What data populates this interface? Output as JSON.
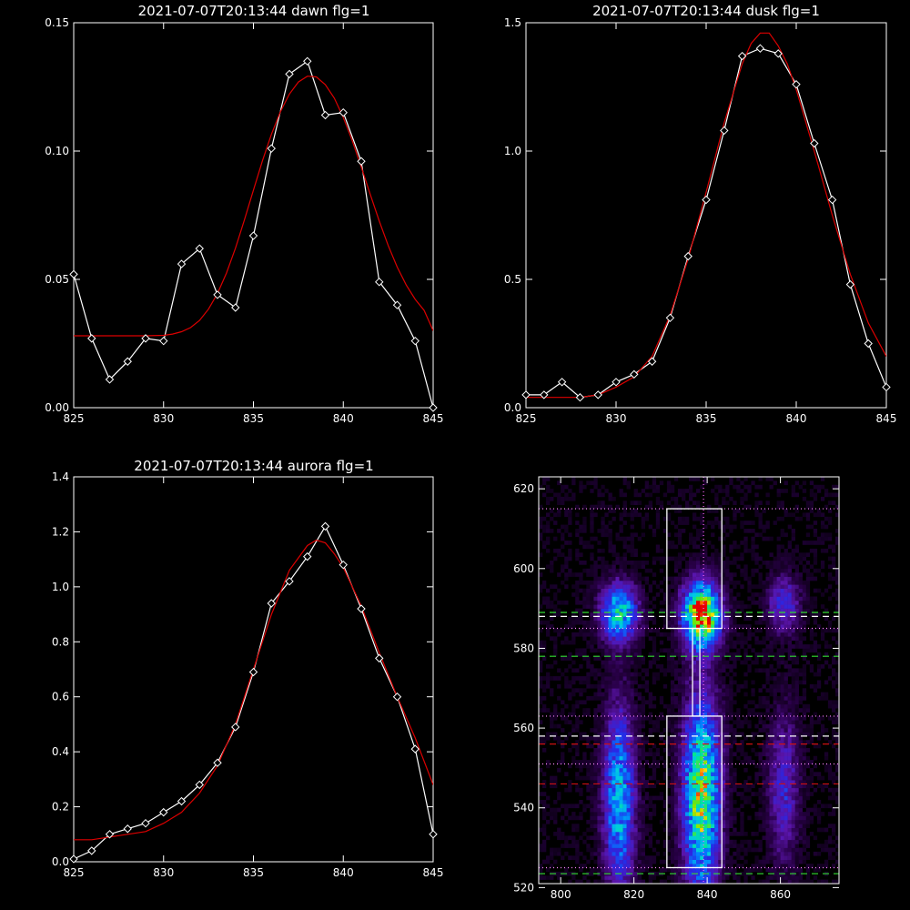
{
  "chart_data": [
    {
      "type": "line",
      "title": "2021-07-07T20:13:44 dawn flg=1",
      "xlim": [
        825,
        845
      ],
      "ylim": [
        0.0,
        0.15
      ],
      "xticks": [
        "825",
        "830",
        "835",
        "840",
        "845"
      ],
      "xtick_values": [
        825,
        830,
        835,
        840,
        845
      ],
      "yticks": [
        "0.00",
        "0.05",
        "0.10",
        "0.15"
      ],
      "ytick_values": [
        0.0,
        0.05,
        0.1,
        0.15
      ],
      "series": [
        {
          "color": "#ffffff",
          "marker": "diamond",
          "x": [
            825,
            826,
            827,
            828,
            829,
            830,
            831,
            832,
            833,
            834,
            835,
            836,
            837,
            838,
            839,
            840,
            841,
            842,
            843,
            844,
            845
          ],
          "y": [
            0.052,
            0.027,
            0.011,
            0.018,
            0.027,
            0.026,
            0.056,
            0.062,
            0.044,
            0.039,
            0.067,
            0.101,
            0.13,
            0.135,
            0.114,
            0.115,
            0.096,
            0.049,
            0.04,
            0.026,
            0.0
          ]
        },
        {
          "color": "#dd0000",
          "x": [
            825,
            826,
            827,
            828,
            829,
            830,
            830.5,
            831,
            831.5,
            832,
            832.5,
            833,
            833.5,
            834,
            834.5,
            835,
            835.5,
            836,
            836.5,
            837,
            837.5,
            838,
            838.5,
            839,
            839.5,
            840,
            840.5,
            841,
            841.5,
            842,
            842.5,
            843,
            843.5,
            844,
            844.5,
            845
          ],
          "y": [
            0.028,
            0.028,
            0.028,
            0.028,
            0.028,
            0.0282,
            0.0287,
            0.0296,
            0.0312,
            0.034,
            0.0384,
            0.0445,
            0.0525,
            0.0622,
            0.0732,
            0.0848,
            0.0962,
            0.1066,
            0.1153,
            0.1222,
            0.1269,
            0.1292,
            0.1289,
            0.1259,
            0.1206,
            0.1131,
            0.104,
            0.0938,
            0.0831,
            0.0727,
            0.0632,
            0.0548,
            0.0478,
            0.0422,
            0.0379,
            0.03
          ]
        }
      ]
    },
    {
      "type": "line",
      "title": "2021-07-07T20:13:44 dusk flg=1",
      "xlim": [
        825,
        845
      ],
      "ylim": [
        0.0,
        1.5
      ],
      "xticks": [
        "825",
        "830",
        "835",
        "840",
        "845"
      ],
      "xtick_values": [
        825,
        830,
        835,
        840,
        845
      ],
      "yticks": [
        "0.0",
        "0.5",
        "1.0",
        "1.5"
      ],
      "ytick_values": [
        0.0,
        0.5,
        1.0,
        1.5
      ],
      "series": [
        {
          "color": "#ffffff",
          "marker": "diamond",
          "x": [
            825,
            826,
            827,
            828,
            829,
            830,
            831,
            832,
            833,
            834,
            835,
            836,
            837,
            838,
            839,
            840,
            841,
            842,
            843,
            844,
            845
          ],
          "y": [
            0.05,
            0.05,
            0.1,
            0.04,
            0.05,
            0.1,
            0.13,
            0.18,
            0.35,
            0.59,
            0.81,
            1.08,
            1.37,
            1.4,
            1.38,
            1.26,
            1.03,
            0.81,
            0.48,
            0.25,
            0.08
          ]
        },
        {
          "color": "#dd0000",
          "x": [
            825,
            826,
            827,
            828,
            829,
            830,
            831,
            832,
            833,
            834,
            835,
            836,
            837,
            837.5,
            838,
            838.5,
            839,
            839.5,
            840,
            841,
            842,
            843,
            844,
            845
          ],
          "y": [
            0.04,
            0.04,
            0.04,
            0.04,
            0.05,
            0.08,
            0.12,
            0.2,
            0.36,
            0.58,
            0.84,
            1.11,
            1.34,
            1.42,
            1.46,
            1.46,
            1.41,
            1.34,
            1.24,
            1.0,
            0.75,
            0.52,
            0.33,
            0.2
          ]
        }
      ]
    },
    {
      "type": "line",
      "title": "2021-07-07T20:13:44 aurora flg=1",
      "xlim": [
        825,
        845
      ],
      "ylim": [
        0.0,
        1.4
      ],
      "xticks": [
        "825",
        "830",
        "835",
        "840",
        "845"
      ],
      "xtick_values": [
        825,
        830,
        835,
        840,
        845
      ],
      "yticks": [
        "0.0",
        "0.2",
        "0.4",
        "0.6",
        "0.8",
        "1.0",
        "1.2",
        "1.4"
      ],
      "ytick_values": [
        0.0,
        0.2,
        0.4,
        0.6,
        0.8,
        1.0,
        1.2,
        1.4
      ],
      "series": [
        {
          "color": "#ffffff",
          "marker": "diamond",
          "x": [
            825,
            826,
            827,
            828,
            829,
            830,
            831,
            832,
            833,
            834,
            835,
            836,
            837,
            838,
            839,
            840,
            841,
            842,
            843,
            844,
            845
          ],
          "y": [
            0.01,
            0.04,
            0.1,
            0.12,
            0.14,
            0.18,
            0.22,
            0.28,
            0.36,
            0.49,
            0.69,
            0.94,
            1.02,
            1.11,
            1.22,
            1.08,
            0.92,
            0.74,
            0.6,
            0.41,
            0.1
          ]
        },
        {
          "color": "#dd0000",
          "x": [
            825,
            826,
            827,
            828,
            829,
            830,
            831,
            832,
            833,
            834,
            835,
            836,
            837,
            838,
            838.5,
            839,
            839.5,
            840,
            841,
            842,
            843,
            844,
            845
          ],
          "y": [
            0.08,
            0.08,
            0.09,
            0.1,
            0.11,
            0.14,
            0.18,
            0.25,
            0.35,
            0.5,
            0.7,
            0.9,
            1.06,
            1.15,
            1.17,
            1.16,
            1.12,
            1.07,
            0.93,
            0.76,
            0.6,
            0.45,
            0.28
          ]
        }
      ]
    },
    {
      "type": "heatmap",
      "title": "",
      "xlim": [
        794,
        876
      ],
      "ylim": [
        521,
        623
      ],
      "xticks": [
        "800",
        "820",
        "840",
        "860"
      ],
      "xtick_values": [
        800,
        820,
        840,
        860
      ],
      "yticks": [
        "520",
        "540",
        "560",
        "580",
        "600",
        "620"
      ],
      "ytick_values": [
        520,
        540,
        560,
        580,
        600,
        620
      ],
      "blobs": [
        {
          "x": 816,
          "y": 589,
          "w": 3.5,
          "h": 5,
          "peak": 0.62
        },
        {
          "x": 838.5,
          "y": 588.5,
          "w": 3.5,
          "h": 5.5,
          "peak": 1.0
        },
        {
          "x": 861,
          "y": 591,
          "w": 3,
          "h": 5,
          "peak": 0.32
        },
        {
          "x": 816,
          "y": 542,
          "w": 3,
          "h": 16,
          "peak": 0.55
        },
        {
          "x": 838.5,
          "y": 543,
          "w": 3.5,
          "h": 17,
          "peak": 0.78
        },
        {
          "x": 861,
          "y": 545,
          "w": 3,
          "h": 13,
          "peak": 0.28
        }
      ],
      "vertical_line_x": 839,
      "dotted_lines_y": [
        615,
        585,
        563,
        551,
        525
      ],
      "white_dashed_lines_y": [
        588,
        558
      ],
      "green_dashed_lines_y": [
        589,
        578,
        523.5
      ],
      "red_dashed_lines_y": [
        556,
        546
      ],
      "boxes": [
        {
          "x0": 829,
          "x1": 844,
          "y0": 585,
          "y1": 615
        },
        {
          "x0": 836,
          "x1": 838,
          "y0": 563,
          "y1": 585
        },
        {
          "x0": 829,
          "x1": 844,
          "y0": 525,
          "y1": 563
        }
      ]
    }
  ]
}
